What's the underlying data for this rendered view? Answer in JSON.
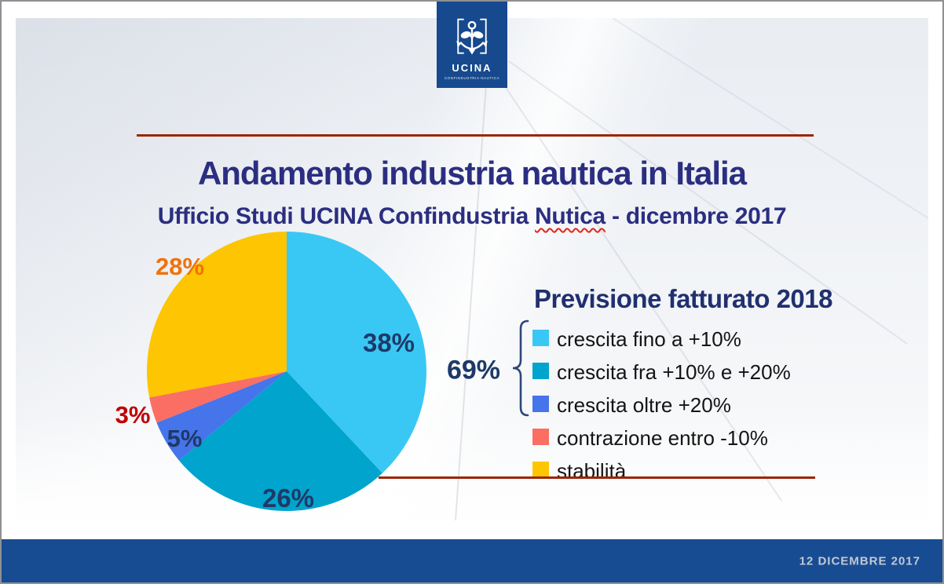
{
  "slide": {
    "title": "Andamento industria nautica in Italia",
    "subtitle": {
      "prefix": "Ufficio Studi UCINA Confindustria ",
      "misspelled_word": "Nutica",
      "suffix": " - dicembre 2017"
    },
    "footer_date": "12 DICEMBRE 2017"
  },
  "logo": {
    "name": "UCINA",
    "tagline": "CONFINDUSTRIA NAUTICA"
  },
  "legend": {
    "title": "Previsione fatturato 2018",
    "items": [
      {
        "label": "crescita fino a +10%",
        "color": "#39c8f4"
      },
      {
        "label": "crescita fra +10% e +20%",
        "color": "#00a4cc"
      },
      {
        "label": "crescita oltre +20%",
        "color": "#4674ea"
      },
      {
        "label": "contrazione entro -10%",
        "color": "#fa6e64"
      },
      {
        "label": "stabilità",
        "color": "#fdc502"
      }
    ]
  },
  "chart_data": {
    "type": "pie",
    "title": "Previsione fatturato 2018",
    "categories": [
      "crescita fino a +10%",
      "crescita fra +10% e +20%",
      "crescita oltre +20%",
      "contrazione entro -10%",
      "stabilità"
    ],
    "values": [
      38,
      26,
      5,
      3,
      28
    ],
    "unit": "%",
    "colors": [
      "#39c8f4",
      "#00a4cc",
      "#4674ea",
      "#fa6e64",
      "#fdc502"
    ],
    "start_angle_deg": 0,
    "direction": "clockwise",
    "legend_position": "right",
    "slice_labels": [
      "38%",
      "26%",
      "5%",
      "3%",
      "28%"
    ],
    "group_annotation": {
      "text": "69%",
      "covers": [
        "crescita fino a +10%",
        "crescita fra +10% e +20%",
        "crescita oltre +20%"
      ]
    }
  },
  "colors": {
    "accent_navy": "#2b2e80",
    "chart_label_navy": "#1e3968",
    "label_red": "#c00000",
    "label_orange": "#f0720b",
    "rule_red": "#9c2508",
    "bar_blue": "#184c92"
  }
}
